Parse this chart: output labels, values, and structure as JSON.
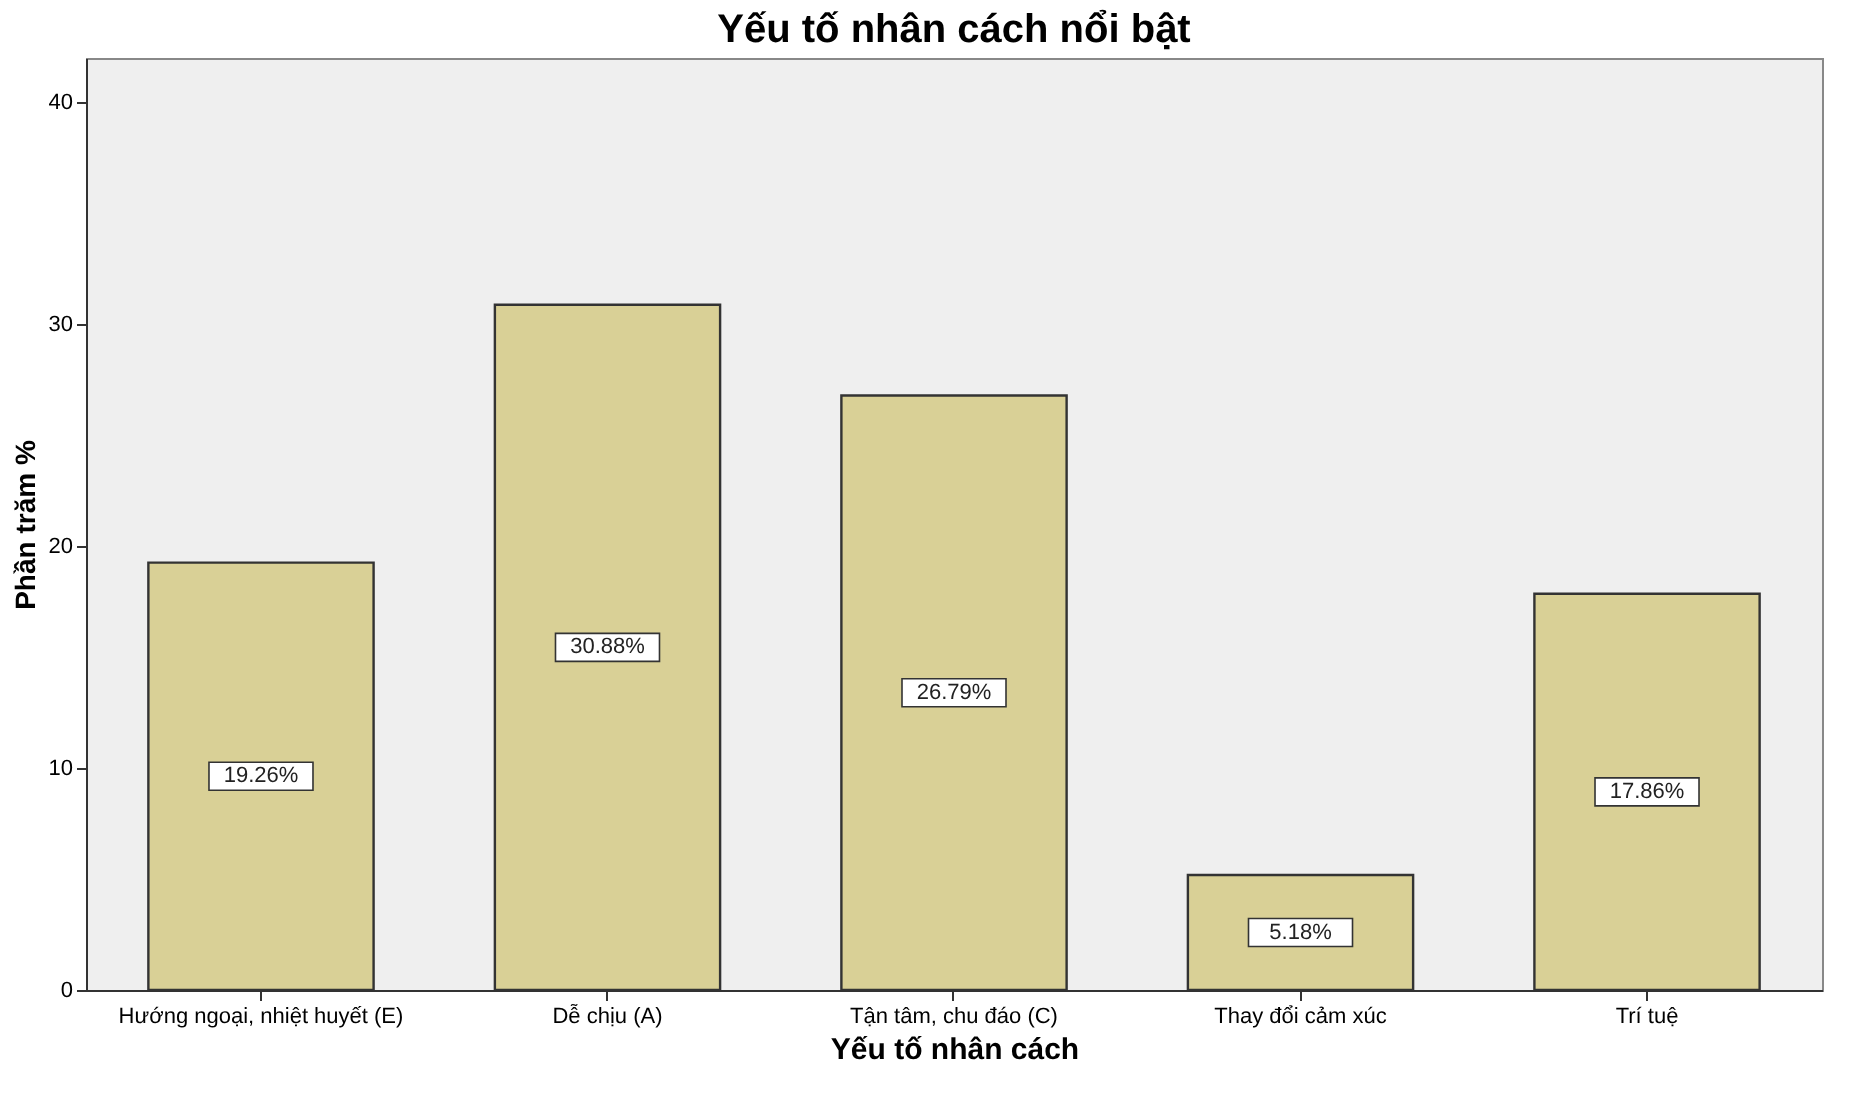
{
  "chart_data": {
    "type": "bar",
    "title": "Yếu tố nhân cách nổi bật",
    "xlabel": "Yếu tố nhân cách",
    "ylabel": "Phần trăm %",
    "categories": [
      "Hướng ngoại, nhiệt huyết (E)",
      "Dễ chịu (A)",
      "Tận tâm, chu đáo (C)",
      "Thay đổi cảm xúc",
      "Trí tuệ"
    ],
    "values": [
      19.26,
      30.88,
      26.79,
      5.18,
      17.86
    ],
    "value_labels": [
      "19.26%",
      "30.88%",
      "26.79%",
      "5.18%",
      "17.86%"
    ],
    "color": "#d9d096",
    "ylim": [
      0,
      42
    ],
    "yticks": [
      0,
      10,
      20,
      30,
      40
    ],
    "grid": false
  }
}
